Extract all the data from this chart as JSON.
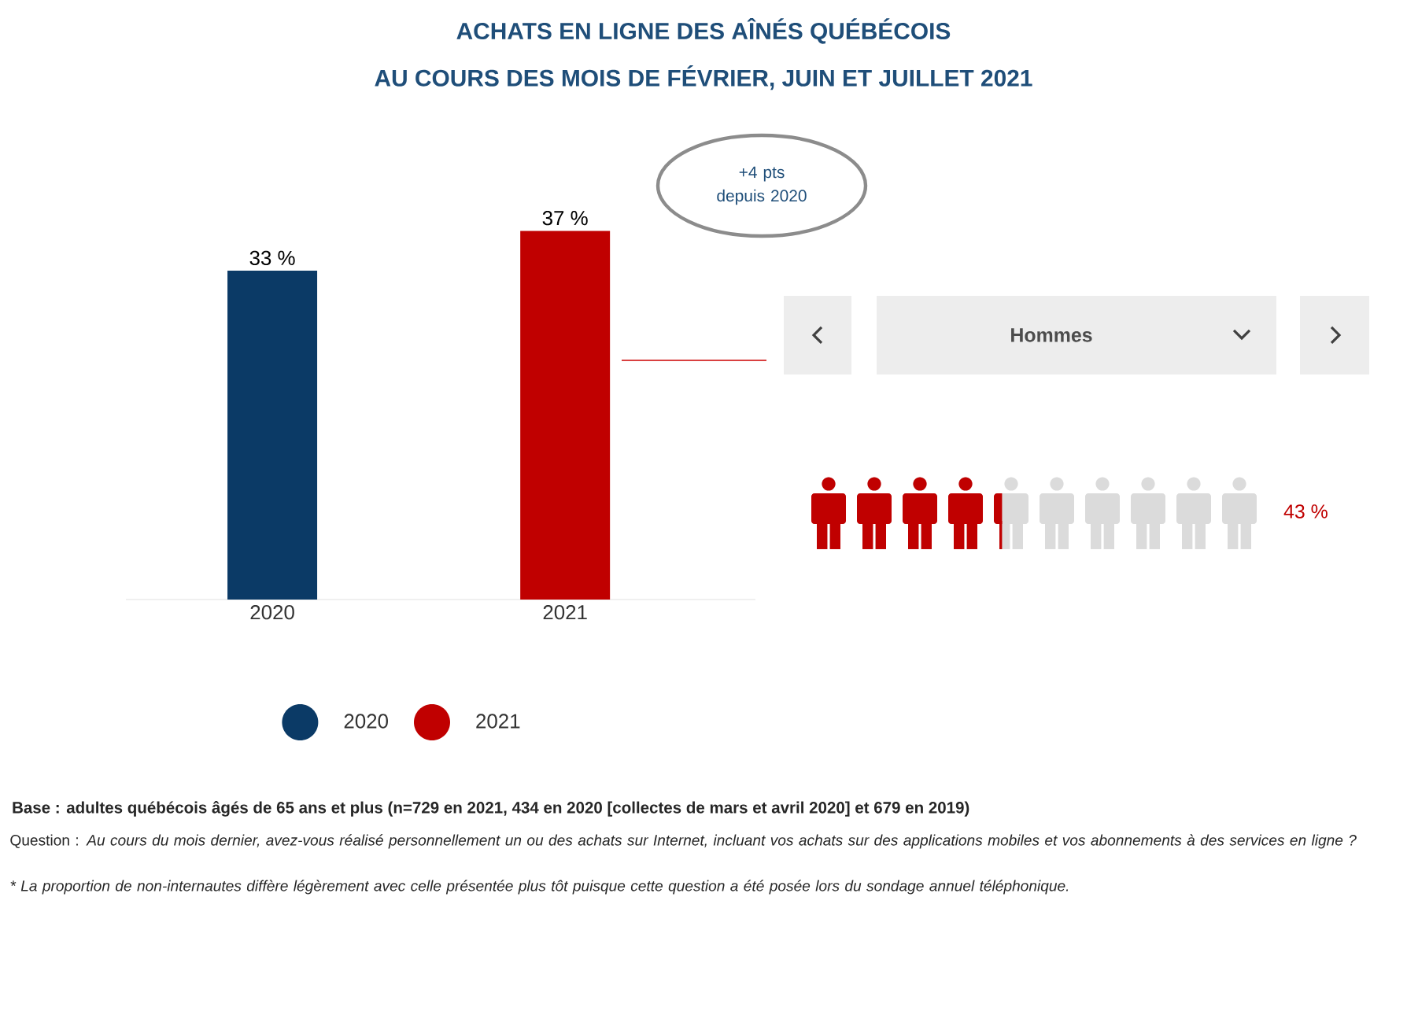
{
  "chart_data": [
    {
      "type": "bar",
      "title": "ACHATS EN LIGNE DES AÎNÉS QUÉBÉCOIS",
      "subtitle": "AU COURS DES MOIS DE FÉVRIER, JUIN ET JUILLET 2021",
      "categories": [
        "2020",
        "2021"
      ],
      "series": [
        {
          "name": "2020",
          "color": "#0b3a66",
          "values": [
            33,
            null
          ],
          "value_labels": [
            "33 %",
            null
          ]
        },
        {
          "name": "2021",
          "color": "#c00000",
          "values": [
            null,
            37
          ],
          "value_labels": [
            null,
            "37 %"
          ]
        }
      ],
      "tick_labels": "x",
      "legend": "bottom",
      "annotations": [
        "+4 pts depuis 2020",
        "Base : adultes québécois âgés de 65 ans et plus (n=729 en 2021, 434 en 2020 [collectes de mars et avril 2020] et 679 en 2019)",
        "Question : *Au cours du mois dernier, avez-vous réalisé personnellement un ou des achats sur Internet, incluant vos achats sur des applications mobiles et vos abonnements à des services en ligne ?*",
        "* La proportion de non-internautes diffère légèrement avec celle présentée plus tôt puisque cette question a été posée lors du sondage annuel téléphonique."
      ]
    },
    {
      "type": "other",
      "title": "Hommes",
      "values": [
        43
      ],
      "value_labels": [
        "43 %"
      ],
      "color": "#c00000"
    }
  ]
}
